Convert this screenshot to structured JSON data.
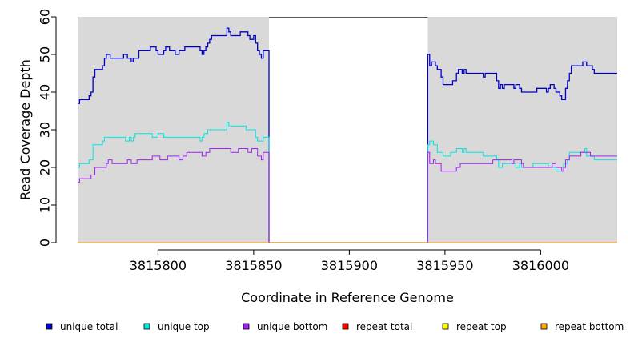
{
  "chart_data": {
    "type": "line",
    "title": "",
    "xlabel": "Coordinate in Reference Genome",
    "ylabel": "Read Coverage Depth",
    "xlim": [
      3815758,
      3816040
    ],
    "ylim": [
      0,
      60
    ],
    "x_ticks": [
      3815800,
      3815850,
      3815900,
      3815950,
      3816000
    ],
    "y_ticks": [
      0,
      10,
      20,
      30,
      40,
      50,
      60
    ],
    "gap_region": [
      3815858,
      3815941
    ],
    "plot_background": "#d9d9d9",
    "gap_background": "#ffffff",
    "legend_position": "bottom",
    "series": [
      {
        "name": "unique total",
        "color": "#0000cc",
        "points": [
          [
            3815758,
            37
          ],
          [
            3815759,
            38
          ],
          [
            3815764,
            39
          ],
          [
            3815765,
            40
          ],
          [
            3815766,
            44
          ],
          [
            3815767,
            46
          ],
          [
            3815771,
            47
          ],
          [
            3815772,
            49
          ],
          [
            3815773,
            50
          ],
          [
            3815775,
            49
          ],
          [
            3815782,
            50
          ],
          [
            3815784,
            49
          ],
          [
            3815786,
            48
          ],
          [
            3815787,
            49
          ],
          [
            3815790,
            51
          ],
          [
            3815796,
            52
          ],
          [
            3815799,
            51
          ],
          [
            3815800,
            50
          ],
          [
            3815803,
            51
          ],
          [
            3815804,
            52
          ],
          [
            3815806,
            51
          ],
          [
            3815809,
            50
          ],
          [
            3815811,
            51
          ],
          [
            3815814,
            52
          ],
          [
            3815822,
            51
          ],
          [
            3815823,
            50
          ],
          [
            3815824,
            51
          ],
          [
            3815825,
            52
          ],
          [
            3815826,
            53
          ],
          [
            3815827,
            54
          ],
          [
            3815828,
            55
          ],
          [
            3815836,
            57
          ],
          [
            3815837,
            56
          ],
          [
            3815838,
            55
          ],
          [
            3815843,
            56
          ],
          [
            3815847,
            55
          ],
          [
            3815848,
            54
          ],
          [
            3815850,
            55
          ],
          [
            3815851,
            53
          ],
          [
            3815852,
            51
          ],
          [
            3815853,
            50
          ],
          [
            3815854,
            49
          ],
          [
            3815855,
            51
          ],
          [
            3815858,
            0
          ],
          [
            3815941,
            50
          ],
          [
            3815942,
            47
          ],
          [
            3815943,
            48
          ],
          [
            3815945,
            47
          ],
          [
            3815946,
            46
          ],
          [
            3815948,
            44
          ],
          [
            3815949,
            42
          ],
          [
            3815954,
            43
          ],
          [
            3815956,
            45
          ],
          [
            3815957,
            46
          ],
          [
            3815959,
            45
          ],
          [
            3815960,
            46
          ],
          [
            3815961,
            45
          ],
          [
            3815970,
            44
          ],
          [
            3815971,
            45
          ],
          [
            3815977,
            43
          ],
          [
            3815978,
            41
          ],
          [
            3815979,
            42
          ],
          [
            3815980,
            41
          ],
          [
            3815981,
            42
          ],
          [
            3815986,
            41
          ],
          [
            3815987,
            42
          ],
          [
            3815989,
            41
          ],
          [
            3815990,
            40
          ],
          [
            3815998,
            41
          ],
          [
            3816003,
            40
          ],
          [
            3816004,
            41
          ],
          [
            3816005,
            42
          ],
          [
            3816007,
            41
          ],
          [
            3816008,
            40
          ],
          [
            3816010,
            39
          ],
          [
            3816011,
            38
          ],
          [
            3816013,
            41
          ],
          [
            3816014,
            43
          ],
          [
            3816015,
            45
          ],
          [
            3816016,
            47
          ],
          [
            3816022,
            48
          ],
          [
            3816024,
            47
          ],
          [
            3816027,
            46
          ],
          [
            3816028,
            45
          ],
          [
            3816040,
            45
          ]
        ]
      },
      {
        "name": "unique top",
        "color": "#00e5e5",
        "points": [
          [
            3815758,
            20
          ],
          [
            3815759,
            21
          ],
          [
            3815764,
            22
          ],
          [
            3815766,
            26
          ],
          [
            3815771,
            27
          ],
          [
            3815772,
            28
          ],
          [
            3815783,
            27
          ],
          [
            3815785,
            28
          ],
          [
            3815786,
            27
          ],
          [
            3815787,
            28
          ],
          [
            3815788,
            29
          ],
          [
            3815797,
            28
          ],
          [
            3815800,
            29
          ],
          [
            3815803,
            28
          ],
          [
            3815812,
            28
          ],
          [
            3815822,
            27
          ],
          [
            3815823,
            28
          ],
          [
            3815824,
            29
          ],
          [
            3815826,
            30
          ],
          [
            3815836,
            32
          ],
          [
            3815837,
            31
          ],
          [
            3815846,
            30
          ],
          [
            3815851,
            28
          ],
          [
            3815852,
            27
          ],
          [
            3815855,
            28
          ],
          [
            3815858,
            0
          ],
          [
            3815941,
            26
          ],
          [
            3815942,
            27
          ],
          [
            3815944,
            26
          ],
          [
            3815946,
            24
          ],
          [
            3815949,
            23
          ],
          [
            3815953,
            24
          ],
          [
            3815956,
            25
          ],
          [
            3815959,
            24
          ],
          [
            3815960,
            25
          ],
          [
            3815961,
            24
          ],
          [
            3815970,
            23
          ],
          [
            3815975,
            23
          ],
          [
            3815977,
            22
          ],
          [
            3815978,
            20
          ],
          [
            3815980,
            21
          ],
          [
            3815987,
            20
          ],
          [
            3815989,
            21
          ],
          [
            3815990,
            20
          ],
          [
            3815996,
            21
          ],
          [
            3816004,
            20
          ],
          [
            3816008,
            19
          ],
          [
            3816012,
            21
          ],
          [
            3816014,
            22
          ],
          [
            3816015,
            24
          ],
          [
            3816023,
            25
          ],
          [
            3816024,
            23
          ],
          [
            3816028,
            22
          ],
          [
            3816040,
            22
          ]
        ]
      },
      {
        "name": "unique bottom",
        "color": "#a020f0",
        "points": [
          [
            3815758,
            16
          ],
          [
            3815759,
            17
          ],
          [
            3815765,
            18
          ],
          [
            3815767,
            20
          ],
          [
            3815773,
            21
          ],
          [
            3815774,
            22
          ],
          [
            3815776,
            21
          ],
          [
            3815784,
            22
          ],
          [
            3815786,
            21
          ],
          [
            3815789,
            22
          ],
          [
            3815797,
            23
          ],
          [
            3815801,
            22
          ],
          [
            3815805,
            23
          ],
          [
            3815811,
            22
          ],
          [
            3815813,
            23
          ],
          [
            3815815,
            24
          ],
          [
            3815823,
            23
          ],
          [
            3815825,
            24
          ],
          [
            3815827,
            25
          ],
          [
            3815838,
            24
          ],
          [
            3815842,
            25
          ],
          [
            3815847,
            24
          ],
          [
            3815849,
            25
          ],
          [
            3815852,
            23
          ],
          [
            3815854,
            22
          ],
          [
            3815855,
            24
          ],
          [
            3815858,
            0
          ],
          [
            3815941,
            24
          ],
          [
            3815942,
            21
          ],
          [
            3815944,
            22
          ],
          [
            3815945,
            21
          ],
          [
            3815948,
            19
          ],
          [
            3815956,
            20
          ],
          [
            3815958,
            21
          ],
          [
            3815968,
            21
          ],
          [
            3815975,
            22
          ],
          [
            3815985,
            21
          ],
          [
            3815986,
            22
          ],
          [
            3815990,
            21
          ],
          [
            3815991,
            20
          ],
          [
            3816003,
            20
          ],
          [
            3816006,
            21
          ],
          [
            3816008,
            20
          ],
          [
            3816011,
            19
          ],
          [
            3816012,
            20
          ],
          [
            3816013,
            22
          ],
          [
            3816015,
            23
          ],
          [
            3816021,
            24
          ],
          [
            3816026,
            23
          ],
          [
            3816040,
            23
          ]
        ]
      },
      {
        "name": "repeat total",
        "color": "#ff0000",
        "points": [
          [
            3815758,
            0
          ],
          [
            3816040,
            0
          ]
        ]
      },
      {
        "name": "repeat top",
        "color": "#ffff00",
        "points": [
          [
            3815758,
            0
          ],
          [
            3816040,
            0
          ]
        ]
      },
      {
        "name": "repeat bottom",
        "color": "#ffa500",
        "points": [
          [
            3815758,
            0
          ],
          [
            3816040,
            0
          ]
        ]
      }
    ]
  }
}
